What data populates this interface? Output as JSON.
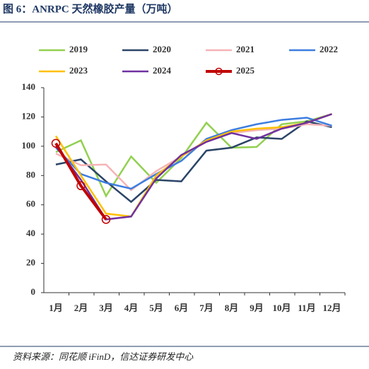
{
  "title": "图 6：ANRPC 天然橡胶产量（万吨）",
  "source": "资料来源：同花顺 iFinD，信达证券研发中心",
  "chart_data": {
    "type": "line",
    "categories": [
      "1月",
      "2月",
      "3月",
      "4月",
      "5月",
      "6月",
      "7月",
      "8月",
      "9月",
      "10月",
      "11月",
      "12月"
    ],
    "ylim": [
      0,
      140
    ],
    "yticks": [
      0,
      20,
      40,
      60,
      80,
      100,
      120,
      140
    ],
    "series": [
      {
        "name": "2019",
        "color": "#92d050",
        "values": [
          96,
          104,
          66,
          93,
          75,
          92,
          116,
          99,
          99.5,
          115,
          117,
          122
        ]
      },
      {
        "name": "2020",
        "color": "#2b4468",
        "values": [
          87.5,
          91,
          76,
          62,
          77,
          76,
          97,
          99,
          106,
          105,
          117,
          113
        ]
      },
      {
        "name": "2021",
        "color": "#f6b3b6",
        "values": [
          95,
          87,
          87.5,
          70,
          83,
          93,
          103,
          109,
          111,
          112,
          115,
          114
        ]
      },
      {
        "name": "2022",
        "color": "#3c7de0",
        "values": [
          99,
          81,
          75,
          71,
          81,
          90,
          105,
          111,
          115,
          118,
          119.5,
          114
        ]
      },
      {
        "name": "2023",
        "color": "#ffc000",
        "values": [
          107,
          80,
          54,
          52,
          80,
          93,
          104,
          110,
          112,
          113,
          116,
          122
        ]
      },
      {
        "name": "2024",
        "color": "#7030a0",
        "values": [
          100,
          77,
          50,
          52,
          78,
          94,
          103,
          109,
          105,
          112,
          116,
          122
        ]
      },
      {
        "name": "2025",
        "color": "#c00000",
        "marker": "circle",
        "values": [
          102,
          73,
          50,
          null,
          null,
          null,
          null,
          null,
          null,
          null,
          null,
          null
        ]
      }
    ]
  }
}
